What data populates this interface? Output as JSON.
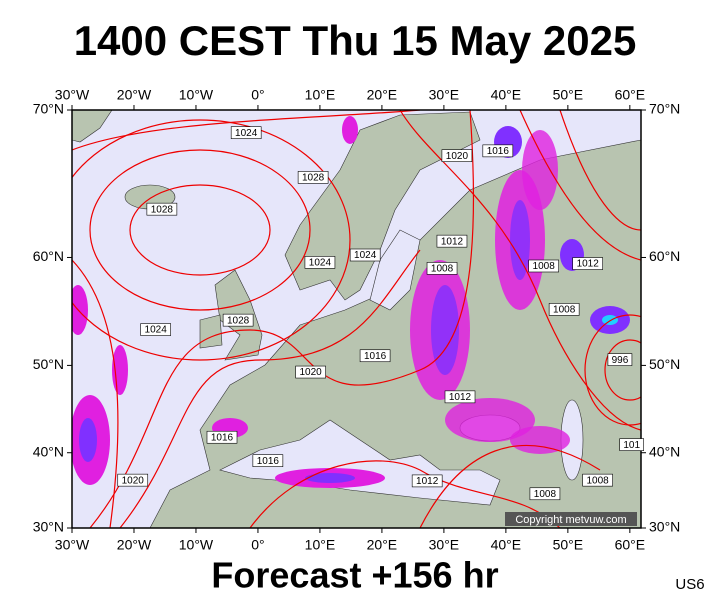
{
  "title": "1400 CEST Thu 15 May 2025",
  "footer": "Forecast +156 hr",
  "model": "US6",
  "copyright": "Copyright metvuw.com",
  "map": {
    "lonlim": [
      -30,
      61.8
    ],
    "latlim": [
      30,
      70
    ],
    "lon_ticks": [
      {
        "value": -30,
        "label": "30°W"
      },
      {
        "value": -20,
        "label": "20°W"
      },
      {
        "value": -10,
        "label": "10°W"
      },
      {
        "value": 0,
        "label": "0°"
      },
      {
        "value": 10,
        "label": "10°E"
      },
      {
        "value": 20,
        "label": "20°E"
      },
      {
        "value": 30,
        "label": "30°E"
      },
      {
        "value": 40,
        "label": "40°E"
      },
      {
        "value": 50,
        "label": "50°E"
      },
      {
        "value": 60,
        "label": "60°E"
      }
    ],
    "lat_ticks": [
      {
        "value": 70,
        "label": "70°N"
      },
      {
        "value": 60,
        "label": "60°N"
      },
      {
        "value": 50,
        "label": "50°N"
      },
      {
        "value": 40,
        "label": "40°N"
      },
      {
        "value": 30,
        "label": "30°N"
      }
    ],
    "isobar_labels": [
      {
        "text": "1024",
        "lon": -1.9,
        "lat": 68.7
      },
      {
        "text": "1028",
        "lon": 8.9,
        "lat": 65.9
      },
      {
        "text": "1028",
        "lon": -15.5,
        "lat": 63.7
      },
      {
        "text": "1028",
        "lon": -3.2,
        "lat": 54.5
      },
      {
        "text": "1024",
        "lon": -16.5,
        "lat": 53.6
      },
      {
        "text": "1024",
        "lon": 10,
        "lat": 59.6
      },
      {
        "text": "1024",
        "lon": 17.3,
        "lat": 60.2
      },
      {
        "text": "1020",
        "lon": 32.1,
        "lat": 67.3
      },
      {
        "text": "1016",
        "lon": 38.7,
        "lat": 67.6
      },
      {
        "text": "1012",
        "lon": 31.3,
        "lat": 61.3
      },
      {
        "text": "1008",
        "lon": 29.7,
        "lat": 59.1
      },
      {
        "text": "1008",
        "lon": 46.1,
        "lat": 59.3
      },
      {
        "text": "1012",
        "lon": 53.2,
        "lat": 59.5
      },
      {
        "text": "1008",
        "lon": 49.4,
        "lat": 55.5
      },
      {
        "text": "996",
        "lon": 58.4,
        "lat": 50.6
      },
      {
        "text": "1016",
        "lon": 18.9,
        "lat": 51
      },
      {
        "text": "1020",
        "lon": 8.5,
        "lat": 49.3
      },
      {
        "text": "1012",
        "lon": 32.6,
        "lat": 46.6
      },
      {
        "text": "1016",
        "lon": -5.8,
        "lat": 41.9
      },
      {
        "text": "1016",
        "lon": 1.6,
        "lat": 39
      },
      {
        "text": "1020",
        "lon": -20.2,
        "lat": 36.5
      },
      {
        "text": "1012",
        "lon": 27.3,
        "lat": 36.4
      },
      {
        "text": "1008",
        "lon": 46.3,
        "lat": 34.7
      },
      {
        "text": "1008",
        "lon": 54.8,
        "lat": 36.5
      },
      {
        "text": "101",
        "lon": 60.3,
        "lat": 41
      }
    ]
  }
}
